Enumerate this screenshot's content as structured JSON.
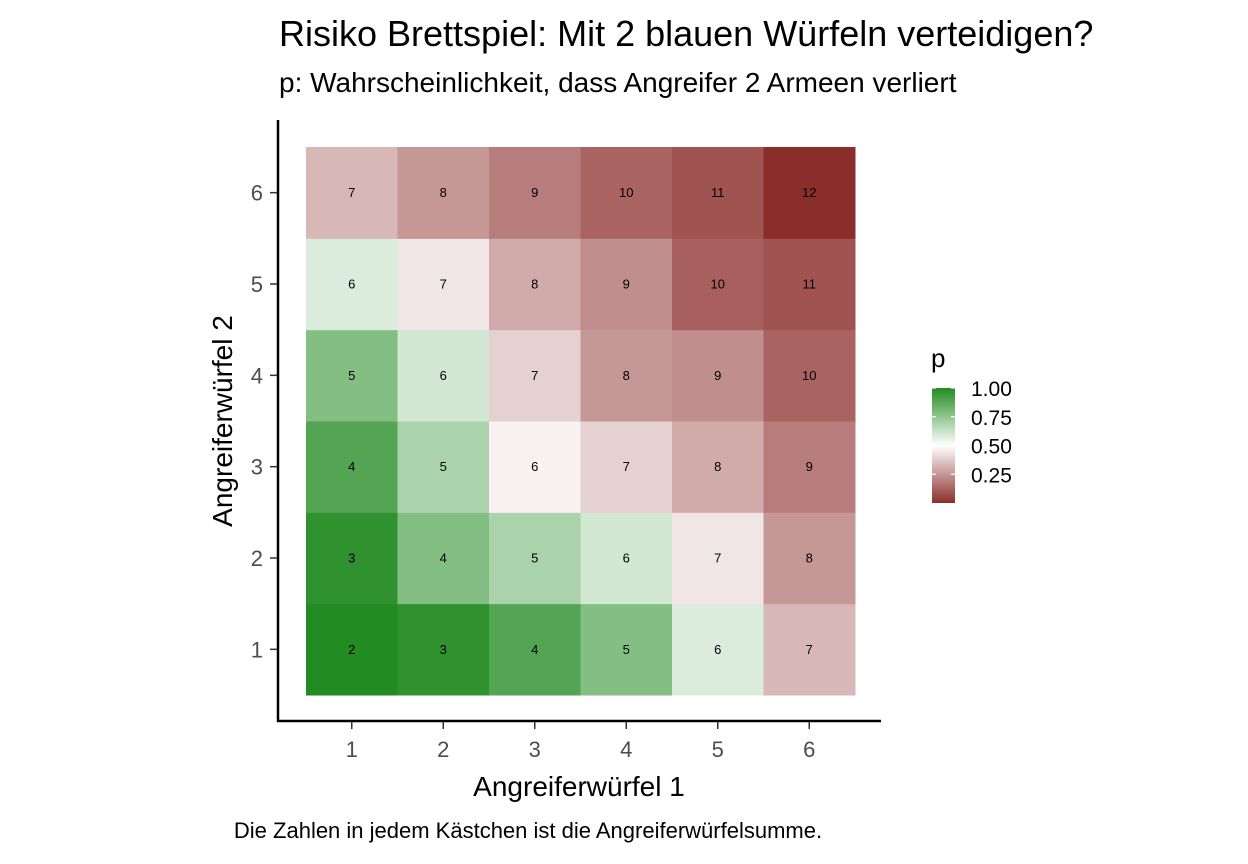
{
  "chart_data": {
    "type": "heatmap",
    "title": "Risiko  Brettspiel: Mit 2 blauen Würfeln verteidigen?",
    "subtitle": "p: Wahrscheinlichkeit, dass Angreifer 2 Armeen verliert",
    "xlabel": "Angreiferwürfel 1",
    "ylabel": "Angreiferwürfel 2",
    "caption": "Die Zahlen in jedem Kästchen ist die Angreiferwürfelsumme.",
    "x_categories": [
      "1",
      "2",
      "3",
      "4",
      "5",
      "6"
    ],
    "y_categories": [
      "1",
      "2",
      "3",
      "4",
      "5",
      "6"
    ],
    "cells": [
      {
        "x": 1,
        "y": 1,
        "label": "2",
        "p": 1.0
      },
      {
        "x": 2,
        "y": 1,
        "label": "3",
        "p": 0.97
      },
      {
        "x": 3,
        "y": 1,
        "label": "4",
        "p": 0.89
      },
      {
        "x": 4,
        "y": 1,
        "label": "5",
        "p": 0.78
      },
      {
        "x": 5,
        "y": 1,
        "label": "6",
        "p": 0.58
      },
      {
        "x": 6,
        "y": 1,
        "label": "7",
        "p": 0.33
      },
      {
        "x": 1,
        "y": 2,
        "label": "3",
        "p": 0.97
      },
      {
        "x": 2,
        "y": 2,
        "label": "4",
        "p": 0.78
      },
      {
        "x": 3,
        "y": 2,
        "label": "5",
        "p": 0.69
      },
      {
        "x": 4,
        "y": 2,
        "label": "6",
        "p": 0.6
      },
      {
        "x": 5,
        "y": 2,
        "label": "7",
        "p": 0.44
      },
      {
        "x": 6,
        "y": 2,
        "label": "8",
        "p": 0.25
      },
      {
        "x": 1,
        "y": 3,
        "label": "4",
        "p": 0.89
      },
      {
        "x": 2,
        "y": 3,
        "label": "5",
        "p": 0.69
      },
      {
        "x": 3,
        "y": 3,
        "label": "6",
        "p": 0.47
      },
      {
        "x": 4,
        "y": 3,
        "label": "7",
        "p": 0.39
      },
      {
        "x": 5,
        "y": 3,
        "label": "8",
        "p": 0.3
      },
      {
        "x": 6,
        "y": 3,
        "label": "9",
        "p": 0.19
      },
      {
        "x": 1,
        "y": 4,
        "label": "5",
        "p": 0.78
      },
      {
        "x": 2,
        "y": 4,
        "label": "6",
        "p": 0.6
      },
      {
        "x": 3,
        "y": 4,
        "label": "7",
        "p": 0.39
      },
      {
        "x": 4,
        "y": 4,
        "label": "8",
        "p": 0.25
      },
      {
        "x": 5,
        "y": 4,
        "label": "9",
        "p": 0.23
      },
      {
        "x": 6,
        "y": 4,
        "label": "10",
        "p": 0.13
      },
      {
        "x": 1,
        "y": 5,
        "label": "6",
        "p": 0.58
      },
      {
        "x": 2,
        "y": 5,
        "label": "7",
        "p": 0.44
      },
      {
        "x": 3,
        "y": 5,
        "label": "8",
        "p": 0.3
      },
      {
        "x": 4,
        "y": 5,
        "label": "9",
        "p": 0.23
      },
      {
        "x": 5,
        "y": 5,
        "label": "10",
        "p": 0.12
      },
      {
        "x": 6,
        "y": 5,
        "label": "11",
        "p": 0.09
      },
      {
        "x": 1,
        "y": 6,
        "label": "7",
        "p": 0.33
      },
      {
        "x": 2,
        "y": 6,
        "label": "8",
        "p": 0.25
      },
      {
        "x": 3,
        "y": 6,
        "label": "9",
        "p": 0.19
      },
      {
        "x": 4,
        "y": 6,
        "label": "10",
        "p": 0.13
      },
      {
        "x": 5,
        "y": 6,
        "label": "11",
        "p": 0.09
      },
      {
        "x": 6,
        "y": 6,
        "label": "12",
        "p": 0.0
      }
    ],
    "legend": {
      "title": "p",
      "breaks": [
        "1.00",
        "0.75",
        "0.50",
        "0.25"
      ],
      "break_values": [
        1.0,
        0.75,
        0.5,
        0.25
      ],
      "range": [
        0.0,
        1.0
      ],
      "placement": "right"
    },
    "colors": {
      "low": "#8b2e2b",
      "mid": "#ffffff",
      "high": "#228b22"
    },
    "grid": false
  }
}
